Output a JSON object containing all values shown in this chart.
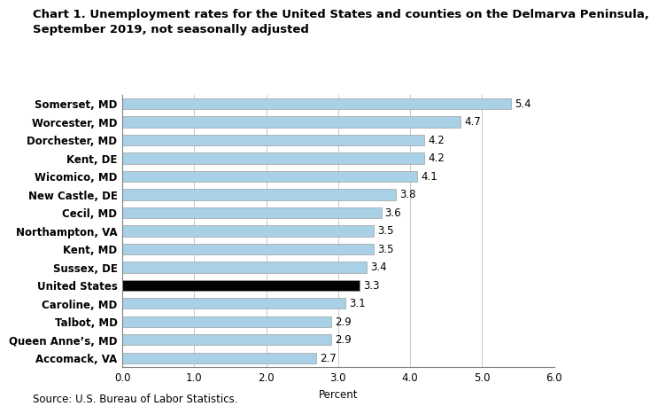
{
  "title_line1": "Chart 1. Unemployment rates for the United States and counties on the Delmarva Peninsula,",
  "title_line2": "September 2019, not seasonally adjusted",
  "categories": [
    "Accomack, VA",
    "Queen Anne’s, MD",
    "Talbot, MD",
    "Caroline, MD",
    "United States",
    "Sussex, DE",
    "Kent, MD",
    "Northampton, VA",
    "Cecil, MD",
    "New Castle, DE",
    "Wicomico, MD",
    "Kent, DE",
    "Dorchester, MD",
    "Worcester, MD",
    "Somerset, MD"
  ],
  "values": [
    2.7,
    2.9,
    2.9,
    3.1,
    3.3,
    3.4,
    3.5,
    3.5,
    3.6,
    3.8,
    4.1,
    4.2,
    4.2,
    4.7,
    5.4
  ],
  "bar_colors": [
    "#a8d0e6",
    "#a8d0e6",
    "#a8d0e6",
    "#a8d0e6",
    "#000000",
    "#a8d0e6",
    "#a8d0e6",
    "#a8d0e6",
    "#a8d0e6",
    "#a8d0e6",
    "#a8d0e6",
    "#a8d0e6",
    "#a8d0e6",
    "#a8d0e6",
    "#a8d0e6"
  ],
  "bar_edge_color": "#a0a0a0",
  "xlabel": "Percent",
  "xlim": [
    0,
    6.0
  ],
  "xticks": [
    0.0,
    1.0,
    2.0,
    3.0,
    4.0,
    5.0,
    6.0
  ],
  "xtick_labels": [
    "0.0",
    "1.0",
    "2.0",
    "3.0",
    "4.0",
    "5.0",
    "6.0"
  ],
  "source_text": "Source: U.S. Bureau of Labor Statistics.",
  "title_fontsize": 9.5,
  "label_fontsize": 8.5,
  "tick_fontsize": 8.5,
  "value_fontsize": 8.5,
  "source_fontsize": 8.5,
  "background_color": "#ffffff",
  "grid_color": "#c8c8c8",
  "bar_height": 0.6
}
